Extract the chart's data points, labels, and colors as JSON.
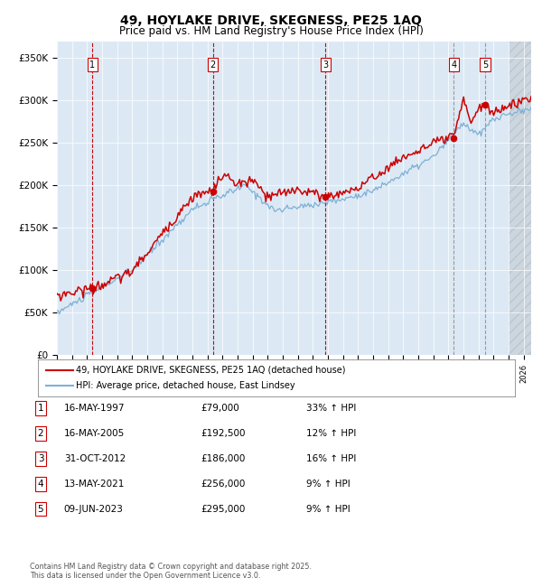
{
  "title1": "49, HOYLAKE DRIVE, SKEGNESS, PE25 1AQ",
  "title2": "Price paid vs. HM Land Registry's House Price Index (HPI)",
  "bg_color": "#dce9f5",
  "ylim": [
    0,
    370000
  ],
  "yticks": [
    0,
    50000,
    100000,
    150000,
    200000,
    250000,
    300000,
    350000
  ],
  "ytick_labels": [
    "£0",
    "£50K",
    "£100K",
    "£150K",
    "£200K",
    "£250K",
    "£300K",
    "£350K"
  ],
  "xlim_start": 1995.0,
  "xlim_end": 2026.5,
  "sale_dates": [
    1997.37,
    2005.37,
    2012.83,
    2021.37,
    2023.44
  ],
  "sale_prices": [
    79000,
    192500,
    186000,
    256000,
    295000
  ],
  "sale_labels": [
    "1",
    "2",
    "3",
    "4",
    "5"
  ],
  "legend_line1": "49, HOYLAKE DRIVE, SKEGNESS, PE25 1AQ (detached house)",
  "legend_line2": "HPI: Average price, detached house, East Lindsey",
  "table_rows": [
    [
      "1",
      "16-MAY-1997",
      "£79,000",
      "33% ↑ HPI"
    ],
    [
      "2",
      "16-MAY-2005",
      "£192,500",
      "12% ↑ HPI"
    ],
    [
      "3",
      "31-OCT-2012",
      "£186,000",
      "16% ↑ HPI"
    ],
    [
      "4",
      "13-MAY-2021",
      "£256,000",
      "9% ↑ HPI"
    ],
    [
      "5",
      "09-JUN-2023",
      "£295,000",
      "9% ↑ HPI"
    ]
  ],
  "footer": "Contains HM Land Registry data © Crown copyright and database right 2025.\nThis data is licensed under the Open Government Licence v3.0.",
  "red_line_color": "#cc0000",
  "blue_line_color": "#7eb0d4",
  "hatch_start": 2025.0
}
